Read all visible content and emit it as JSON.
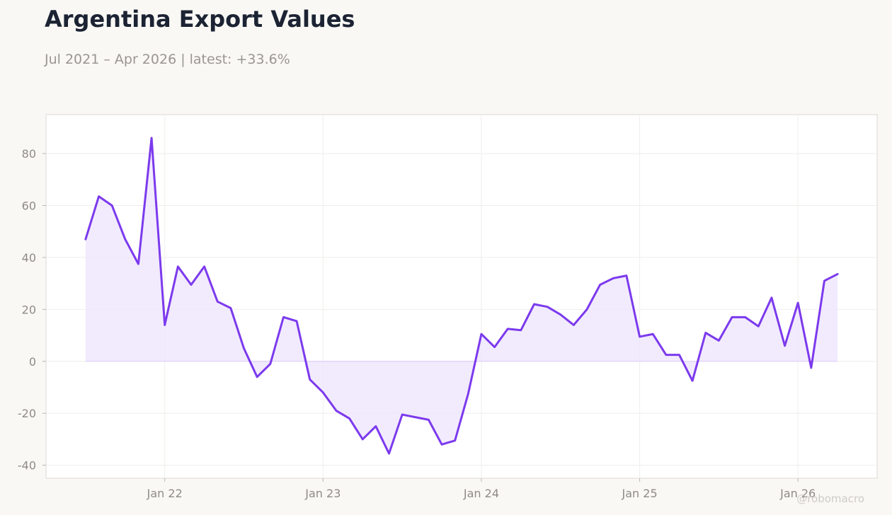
{
  "header": {
    "title": "Argentina Export Values",
    "subtitle": "Jul 2021 – Apr 2026 | latest: +33.6%"
  },
  "watermark": "@robomacro",
  "colors": {
    "background": "#f9f8f5",
    "plot_background": "#ffffff",
    "line": "#7c3aed",
    "fill": "#ede4fd",
    "grid": "#efeeeb",
    "axis_text": "#8f8b86"
  },
  "chart_data": {
    "type": "area",
    "title": "Argentina Export Values",
    "subtitle": "Jul 2021 – Apr 2026 | latest: +33.6%",
    "xlabel": "",
    "ylabel": "",
    "x_range": [
      "2021-04",
      "2026-07"
    ],
    "ylim": [
      -45,
      95
    ],
    "yticks": [
      -40,
      -20,
      0,
      20,
      40,
      60,
      80
    ],
    "xticks": [
      {
        "date": "2022-01",
        "label": "Jan 22"
      },
      {
        "date": "2023-01",
        "label": "Jan 23"
      },
      {
        "date": "2024-01",
        "label": "Jan 24"
      },
      {
        "date": "2025-01",
        "label": "Jan 25"
      },
      {
        "date": "2026-01",
        "label": "Jan 26"
      }
    ],
    "grid": true,
    "legend": "none",
    "series": [
      {
        "x": [
          "2021-07",
          "2021-08",
          "2021-09",
          "2021-10",
          "2021-11",
          "2021-12",
          "2022-01",
          "2022-02",
          "2022-03",
          "2022-04",
          "2022-05",
          "2022-06",
          "2022-07",
          "2022-08",
          "2022-09",
          "2022-10",
          "2022-11",
          "2022-12",
          "2023-01",
          "2023-02",
          "2023-03",
          "2023-04",
          "2023-05",
          "2023-06",
          "2023-07",
          "2023-08",
          "2023-09",
          "2023-10",
          "2023-11",
          "2023-12",
          "2024-01",
          "2024-02",
          "2024-03",
          "2024-04",
          "2024-05",
          "2024-06",
          "2024-07",
          "2024-08",
          "2024-09",
          "2024-10",
          "2024-11",
          "2024-12",
          "2025-01",
          "2025-02",
          "2025-03",
          "2025-04",
          "2025-05",
          "2025-06",
          "2025-07",
          "2025-08",
          "2025-09",
          "2025-10",
          "2025-11",
          "2025-12",
          "2026-01",
          "2026-02",
          "2026-03",
          "2026-04"
        ],
        "values": [
          47,
          63.5,
          60,
          47,
          37.5,
          86,
          14,
          36.5,
          29.5,
          36.5,
          23,
          20.5,
          5,
          -6,
          -1,
          17,
          15.5,
          -7,
          -12,
          -19,
          -22,
          -30,
          -25,
          -35.5,
          -20.5,
          -21.5,
          -22.5,
          -32,
          -30.5,
          -12.5,
          10.5,
          5.5,
          12.5,
          12,
          22,
          21,
          18,
          14,
          20,
          29.5,
          32,
          33,
          9.5,
          10.5,
          2.5,
          2.5,
          -7.5,
          11,
          8,
          17,
          17,
          13.5,
          24.5,
          6,
          22.5,
          -2.5,
          31,
          33.6
        ]
      }
    ]
  }
}
